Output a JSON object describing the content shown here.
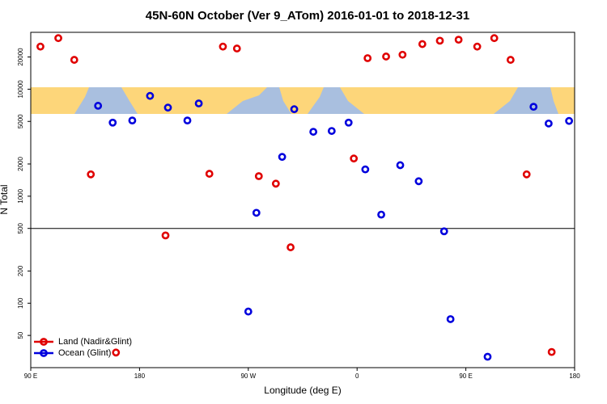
{
  "chart_data": {
    "type": "scatter",
    "title": "45N-60N October (Ver 9_ATom)   2016-01-01 to 2018-12-31",
    "xlabel": "Longitude (deg E)",
    "ylabel": "N Total",
    "log_y": true,
    "hline": 500,
    "legend": "lower left",
    "xlim": [
      90,
      540
    ],
    "ylim": [
      25,
      34000
    ],
    "xticks": [
      {
        "value": 90,
        "label": "90 E"
      },
      180,
      {
        "value": 270,
        "label": "90 W"
      },
      {
        "value": 360,
        "label": "0"
      },
      {
        "value": 450,
        "label": "90 E"
      },
      {
        "value": 540,
        "label": "180"
      }
    ],
    "yticks": [
      50,
      100,
      200,
      500,
      1000,
      2000,
      5000,
      10000,
      20000
    ],
    "series": [
      {
        "name": "Land (Nadir&Glint)",
        "color": "#e00000",
        "x": [
          98,
          112.8,
          126,
          139.7,
          160.5,
          201.5,
          237.8,
          249,
          260.6,
          278.7,
          292.8,
          305,
          357.3,
          368.7,
          384,
          397.6,
          414,
          428.5,
          444,
          459.4,
          473.5,
          487,
          500.3,
          521
        ],
        "values": [
          25000,
          30000,
          18800,
          1600,
          34.6,
          430,
          1620,
          25000,
          24000,
          1540,
          1310,
          333,
          2250,
          19500,
          20200,
          21000,
          26400,
          28400,
          29000,
          25000,
          30000,
          18800,
          1600,
          35
        ]
      },
      {
        "name": "Ocean (Glint)",
        "color": "#0000dd",
        "x": [
          145.7,
          157.8,
          174,
          188.7,
          203.5,
          219.6,
          229,
          270,
          276.7,
          298,
          308,
          323.8,
          339,
          353,
          366.8,
          380,
          395.7,
          411,
          432,
          437.3,
          468,
          506,
          518.5,
          535.4
        ],
        "values": [
          7000,
          4870,
          5100,
          8660,
          6730,
          5100,
          7360,
          83.6,
          700,
          2330,
          6500,
          4000,
          4070,
          4870,
          1780,
          673,
          1950,
          1380,
          470,
          71,
          31.6,
          6850,
          4780,
          5050
        ]
      }
    ]
  }
}
